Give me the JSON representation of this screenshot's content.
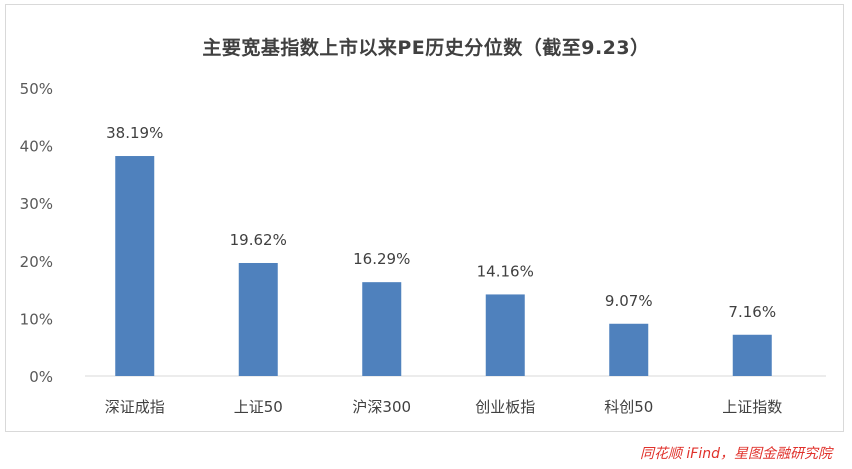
{
  "chart_data": {
    "type": "bar",
    "title": "主要宽基指数上市以来PE历史分位数（截至9.23）",
    "categories": [
      "深证成指",
      "上证50",
      "沪深300",
      "创业板指",
      "科创50",
      "上证指数"
    ],
    "values": [
      38.19,
      19.62,
      16.29,
      14.16,
      9.07,
      7.16
    ],
    "value_labels": [
      "38.19%",
      "19.62%",
      "16.29%",
      "14.16%",
      "9.07%",
      "7.16%"
    ],
    "ylim": [
      0,
      50
    ],
    "yticks": [
      0,
      10,
      20,
      30,
      40,
      50
    ],
    "ytick_labels": [
      "0%",
      "10%",
      "20%",
      "30%",
      "40%",
      "50%"
    ],
    "xlabel": "",
    "ylabel": "",
    "grid": false,
    "bar_color": "#4f81bd"
  },
  "source": "同花顺 iFind，星图金融研究院"
}
